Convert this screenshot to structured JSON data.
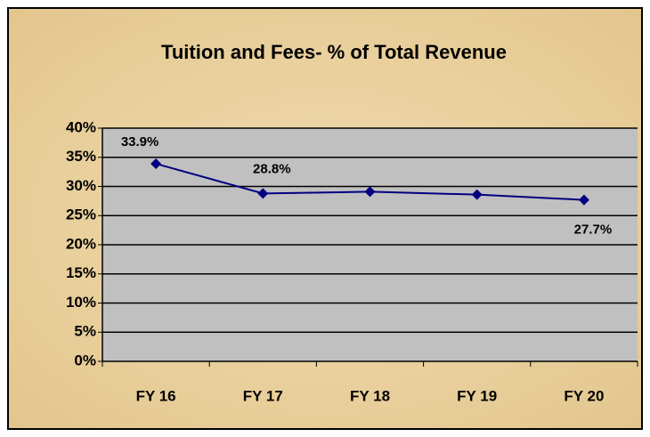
{
  "chart_data": {
    "type": "line",
    "title": "Tuition and Fees- % of Total Revenue",
    "categories": [
      "FY 16",
      "FY 17",
      "FY 18",
      "FY 19",
      "FY 20"
    ],
    "series": [
      {
        "color": "#000080",
        "values": [
          33.9,
          28.8,
          29.1,
          28.6,
          27.7
        ],
        "value_labels": [
          "33.9%",
          "28.8%",
          null,
          null,
          "27.7%"
        ]
      }
    ],
    "ylim": [
      0,
      40
    ],
    "yticks": [
      {
        "value": 0,
        "label": "0%"
      },
      {
        "value": 5,
        "label": "5%"
      },
      {
        "value": 10,
        "label": "10%"
      },
      {
        "value": 15,
        "label": "15%"
      },
      {
        "value": 20,
        "label": "20%"
      },
      {
        "value": 25,
        "label": "25%"
      },
      {
        "value": 30,
        "label": "30%"
      },
      {
        "value": 35,
        "label": "35%"
      },
      {
        "value": 40,
        "label": "40%"
      }
    ],
    "grid": true,
    "plot_background": "#c0c0c0"
  }
}
